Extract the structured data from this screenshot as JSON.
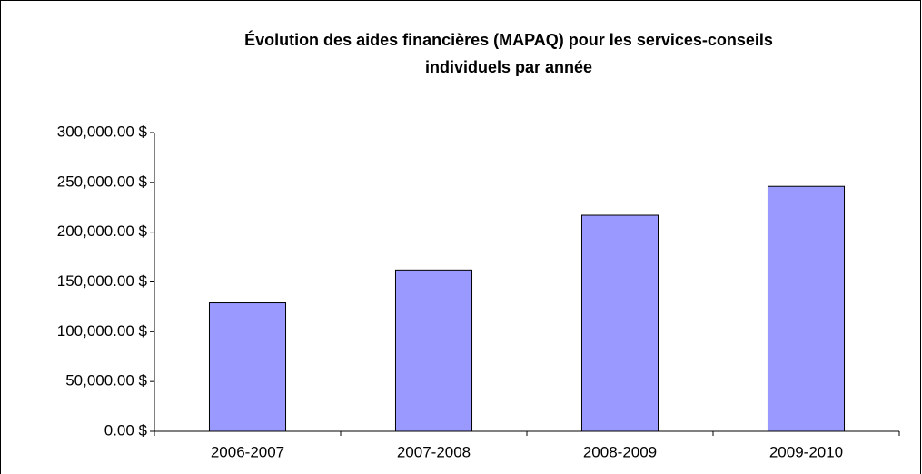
{
  "chart_data": {
    "type": "bar",
    "title": [
      "Évolution des aides financières (MAPAQ) pour les services-conseils",
      "individuels par année"
    ],
    "categories": [
      "2006-2007",
      "2007-2008",
      "2008-2009",
      "2009-2010"
    ],
    "values": [
      129000,
      162000,
      217000,
      246000
    ],
    "color": "#9999ff",
    "ylim": [
      0,
      300000
    ],
    "yticks": [
      {
        "value": 0,
        "label": "0.00 $"
      },
      {
        "value": 50000,
        "label": "50,000.00 $"
      },
      {
        "value": 100000,
        "label": "100,000.00 $"
      },
      {
        "value": 150000,
        "label": "150,000.00 $"
      },
      {
        "value": 200000,
        "label": "200,000.00 $"
      },
      {
        "value": 250000,
        "label": "250,000.00 $"
      },
      {
        "value": 300000,
        "label": "300,000.00 $"
      }
    ],
    "grid": false
  }
}
